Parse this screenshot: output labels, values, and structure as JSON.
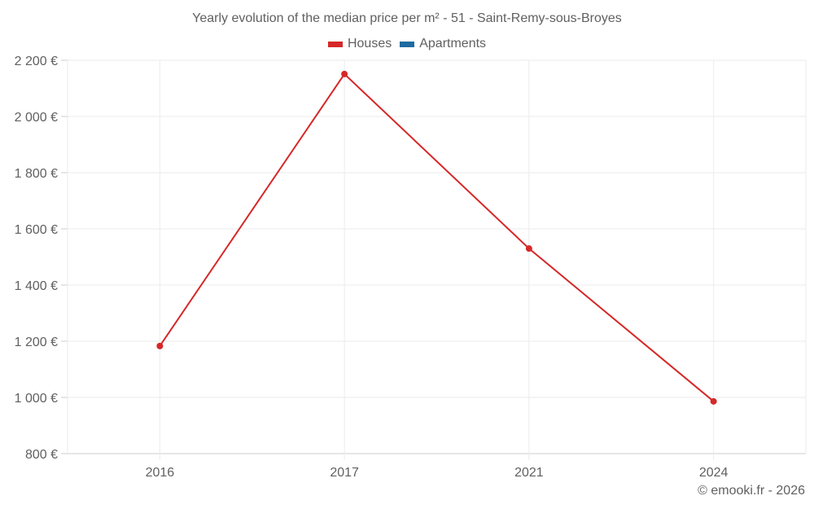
{
  "chart_data": {
    "type": "line",
    "title": "Yearly evolution of the median price per m² - 51 - Saint-Remy-sous-Broyes",
    "xlabel": "",
    "ylabel": "",
    "categories": [
      "2016",
      "2017",
      "2021",
      "2024"
    ],
    "series": [
      {
        "name": "Houses",
        "color": "#d62728",
        "values": [
          1183,
          2151,
          1530,
          986
        ]
      },
      {
        "name": "Apartments",
        "color": "#1f6aa0",
        "values": []
      }
    ],
    "ylim": [
      800,
      2200
    ],
    "yticks": [
      800,
      1000,
      1200,
      1400,
      1600,
      1800,
      2000,
      2200
    ],
    "ytick_labels": [
      "800 €",
      "1 000 €",
      "1 200 €",
      "1 400 €",
      "1 600 €",
      "1 800 €",
      "2 000 €",
      "2 200 €"
    ],
    "grid": true,
    "legend_position": "top"
  },
  "title": "Yearly evolution of the median price per m² - 51 - Saint-Remy-sous-Broyes",
  "legend": [
    {
      "label": "Houses",
      "color": "#d62728"
    },
    {
      "label": "Apartments",
      "color": "#1f6aa0"
    }
  ],
  "credit": "© emooki.fr - 2026"
}
